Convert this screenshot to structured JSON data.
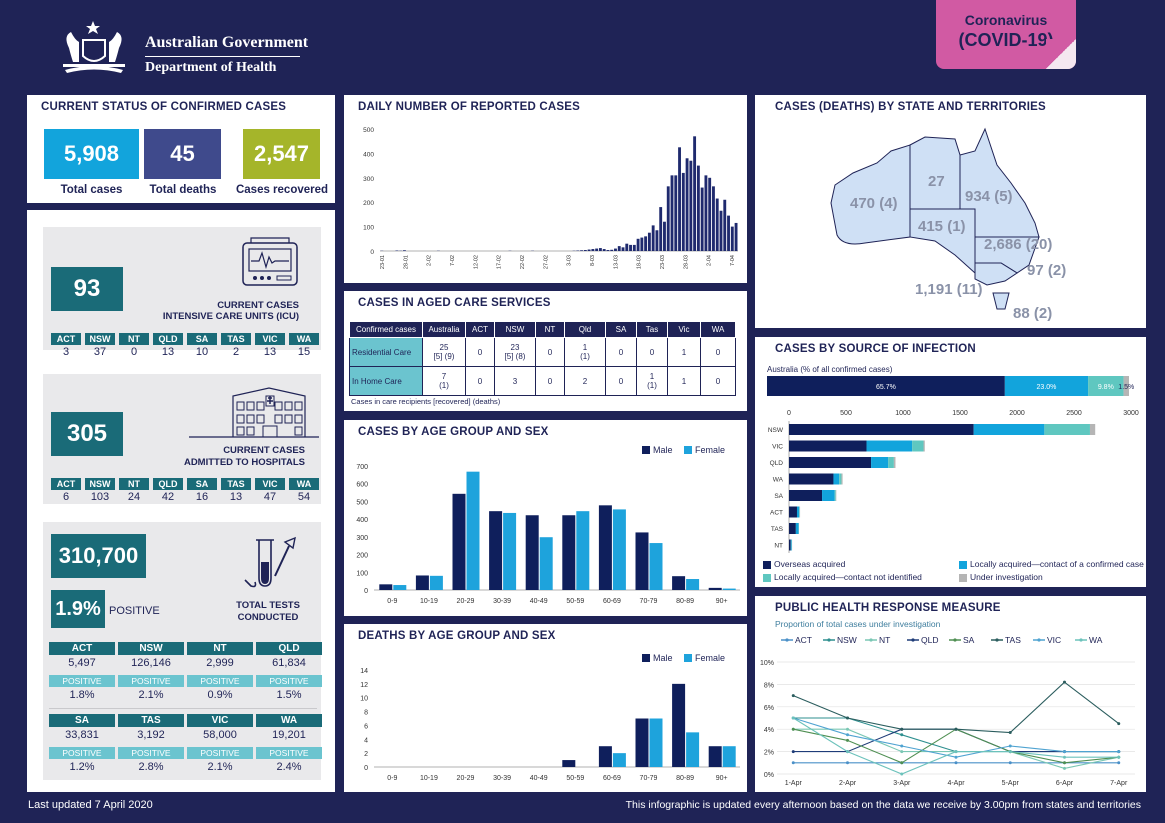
{
  "header": {
    "gov_name": "Australian Government",
    "dept_name": "Department of Health",
    "covid_line1": "Coronavirus",
    "covid_line2": "(COVID-19)"
  },
  "colors": {
    "navy": "#1f2356",
    "teal": "#1a6b78",
    "light_teal": "#6bc4cf",
    "blue": "#12a4dc",
    "slate": "#3f4a8c",
    "olive": "#a5b52a",
    "pink": "#d15aa3",
    "male": "#0f1f5c",
    "female": "#1ea3dc",
    "map_fill": "#cfe0f5"
  },
  "status": {
    "title": "CURRENT STATUS OF CONFIRMED CASES",
    "total_cases": "5,908",
    "total_cases_label": "Total cases",
    "total_deaths": "45",
    "total_deaths_label": "Total deaths",
    "recovered": "2,547",
    "recovered_label": "Cases recovered"
  },
  "icu": {
    "value": "93",
    "label1": "CURRENT CASES",
    "label2": "INTENSIVE CARE UNITS (ICU)",
    "states": [
      {
        "s": "ACT",
        "v": "3"
      },
      {
        "s": "NSW",
        "v": "37"
      },
      {
        "s": "NT",
        "v": "0"
      },
      {
        "s": "QLD",
        "v": "13"
      },
      {
        "s": "SA",
        "v": "10"
      },
      {
        "s": "TAS",
        "v": "2"
      },
      {
        "s": "VIC",
        "v": "13"
      },
      {
        "s": "WA",
        "v": "15"
      }
    ]
  },
  "hospital": {
    "value": "305",
    "label1": "CURRENT CASES",
    "label2": "ADMITTED TO HOSPITALS",
    "states": [
      {
        "s": "ACT",
        "v": "6"
      },
      {
        "s": "NSW",
        "v": "103"
      },
      {
        "s": "NT",
        "v": "24"
      },
      {
        "s": "QLD",
        "v": "42"
      },
      {
        "s": "SA",
        "v": "16"
      },
      {
        "s": "TAS",
        "v": "13"
      },
      {
        "s": "VIC",
        "v": "47"
      },
      {
        "s": "WA",
        "v": "54"
      }
    ]
  },
  "tests": {
    "value": "310,700",
    "positive_pct": "1.9%",
    "positive_label": "POSITIVE",
    "label1": "TOTAL TESTS",
    "label2": "CONDUCTED",
    "positive_word": "POSITIVE",
    "states": [
      {
        "s": "ACT",
        "v": "5,497",
        "p": "1.8%"
      },
      {
        "s": "NSW",
        "v": "126,146",
        "p": "2.1%"
      },
      {
        "s": "NT",
        "v": "2,999",
        "p": "0.9%"
      },
      {
        "s": "QLD",
        "v": "61,834",
        "p": "1.5%"
      },
      {
        "s": "SA",
        "v": "33,831",
        "p": "1.2%"
      },
      {
        "s": "TAS",
        "v": "3,192",
        "p": "2.8%"
      },
      {
        "s": "VIC",
        "v": "58,000",
        "p": "2.1%"
      },
      {
        "s": "WA",
        "v": "19,201",
        "p": "2.4%"
      }
    ]
  },
  "aged_care": {
    "title": "CASES IN AGED CARE SERVICES",
    "headers": [
      "Confirmed cases",
      "Australia",
      "ACT",
      "NSW",
      "NT",
      "Qld",
      "SA",
      "Tas",
      "Vic",
      "WA"
    ],
    "rows": [
      {
        "label": "Residential Care",
        "cells": [
          [
            "25",
            "[5] (9)"
          ],
          [
            "0",
            ""
          ],
          [
            "23",
            "[5] (8)"
          ],
          [
            "0",
            ""
          ],
          [
            "1",
            "(1)"
          ],
          [
            "0",
            ""
          ],
          [
            "0",
            ""
          ],
          [
            "1",
            ""
          ],
          [
            "0",
            ""
          ]
        ]
      },
      {
        "label": "In Home Care",
        "cells": [
          [
            "7",
            "(1)"
          ],
          [
            "0",
            ""
          ],
          [
            "3",
            ""
          ],
          [
            "0",
            ""
          ],
          [
            "2",
            ""
          ],
          [
            "0",
            ""
          ],
          [
            "1",
            "(1)"
          ],
          [
            "1",
            ""
          ],
          [
            "0",
            ""
          ]
        ]
      }
    ],
    "note": "Cases in care recipients [recovered] (deaths)"
  },
  "map": {
    "title": "CASES (DEATHS) BY STATE AND TERRITORIES",
    "labels": {
      "WA": "470 (4)",
      "NT": "27",
      "QLD": "934 (5)",
      "SA": "415 (1)",
      "NSW": "2,686 (20)",
      "ACT": "97 (2)",
      "VIC": "1,191 (11)",
      "TAS": "88 (2)"
    }
  },
  "footer": {
    "left": "Last updated 7 April 2020",
    "right": "This infographic is updated every afternoon based on the data we receive by 3.00pm from states and territories"
  },
  "chart_data": [
    {
      "id": "daily",
      "type": "bar",
      "title": "DAILY NUMBER OF REPORTED CASES",
      "ylim": [
        0,
        500
      ],
      "yticks": [
        0,
        100,
        200,
        300,
        400,
        500
      ],
      "tick_labels": [
        "23-01",
        "28-01",
        "2-02",
        "7-02",
        "12-02",
        "17-02",
        "22-02",
        "27-02",
        "3-03",
        "8-03",
        "13-03",
        "18-03",
        "23-03",
        "28-03",
        "2-04",
        "7-04"
      ],
      "values": [
        1,
        0,
        0,
        0,
        2,
        1,
        3,
        0,
        0,
        0,
        0,
        0,
        0,
        0,
        0,
        1,
        0,
        0,
        0,
        0,
        0,
        0,
        0,
        0,
        0,
        0,
        0,
        0,
        0,
        0,
        0,
        0,
        0,
        0,
        1,
        0,
        0,
        0,
        0,
        0,
        1,
        0,
        0,
        0,
        0,
        0,
        0,
        0,
        0,
        0,
        0,
        1,
        2,
        3,
        4,
        6,
        8,
        10,
        12,
        8,
        4,
        5,
        10,
        20,
        15,
        30,
        25,
        25,
        50,
        55,
        60,
        75,
        105,
        85,
        180,
        120,
        265,
        310,
        310,
        425,
        320,
        380,
        370,
        470,
        350,
        260,
        310,
        300,
        265,
        215,
        165,
        210,
        145,
        100,
        115
      ]
    },
    {
      "id": "aged_care",
      "type": "table",
      "title": "CASES IN AGED CARE SERVICES"
    },
    {
      "id": "source_total",
      "type": "bar",
      "title": "CASES BY SOURCE OF INFECTION",
      "subtitle": "Australia (% of all confirmed cases)",
      "segments": [
        {
          "name": "Overseas acquired",
          "value": 65.7,
          "label": "65.7%"
        },
        {
          "name": "Locally acquired—contact of a confirmed case",
          "value": 23.0,
          "label": "23.0%"
        },
        {
          "name": "Locally acquired—contact not identified",
          "value": 9.8,
          "label": "9.8%"
        },
        {
          "name": "Under investigation",
          "value": 1.5,
          "label": "1.5%"
        }
      ]
    },
    {
      "id": "source_state",
      "type": "bar",
      "xlim": [
        0,
        3000
      ],
      "xticks": [
        0,
        500,
        1000,
        1500,
        2000,
        2500,
        3000
      ],
      "categories": [
        "NSW",
        "VIC",
        "QLD",
        "WA",
        "SA",
        "ACT",
        "TAS",
        "NT"
      ],
      "series": [
        {
          "name": "Overseas acquired",
          "color": "#0f1f5c",
          "values": [
            1620,
            680,
            720,
            390,
            290,
            70,
            60,
            15
          ]
        },
        {
          "name": "Locally acquired—contact of a confirmed case",
          "color": "#12a4dc",
          "values": [
            620,
            400,
            150,
            50,
            110,
            20,
            25,
            8
          ]
        },
        {
          "name": "Locally acquired—contact not identified",
          "color": "#5fc7c0",
          "values": [
            400,
            100,
            50,
            20,
            10,
            4,
            2,
            2
          ]
        },
        {
          "name": "Under investigation",
          "color": "#b5b5b5",
          "values": [
            46,
            11,
            14,
            10,
            5,
            3,
            1,
            2
          ]
        }
      ],
      "legend": [
        "Overseas acquired",
        "Locally acquired—contact of a confirmed case",
        "Locally acquired—contact not identified",
        "Under investigation"
      ]
    },
    {
      "id": "age_cases",
      "type": "bar",
      "title": "CASES BY AGE GROUP AND SEX",
      "ylim": [
        0,
        700
      ],
      "yticks": [
        0,
        100,
        200,
        300,
        400,
        500,
        600,
        700
      ],
      "categories": [
        "0-9",
        "10-19",
        "20-29",
        "30-39",
        "40-49",
        "50-59",
        "60-69",
        "70-79",
        "80-89",
        "90+"
      ],
      "series": [
        {
          "name": "Male",
          "values": [
            32,
            82,
            543,
            445,
            422,
            422,
            478,
            325,
            78,
            12
          ]
        },
        {
          "name": "Female",
          "values": [
            28,
            80,
            668,
            435,
            298,
            445,
            455,
            265,
            62,
            8
          ]
        }
      ],
      "legend": [
        "Male",
        "Female"
      ]
    },
    {
      "id": "age_deaths",
      "type": "bar",
      "title": "DEATHS BY AGE GROUP AND SEX",
      "ylim": [
        0,
        14
      ],
      "yticks": [
        0,
        2,
        4,
        6,
        8,
        10,
        12,
        14
      ],
      "categories": [
        "0-9",
        "10-19",
        "20-29",
        "30-39",
        "40-49",
        "50-59",
        "60-69",
        "70-79",
        "80-89",
        "90+"
      ],
      "series": [
        {
          "name": "Male",
          "values": [
            0,
            0,
            0,
            0,
            0,
            1,
            3,
            7,
            12,
            3
          ]
        },
        {
          "name": "Female",
          "values": [
            0,
            0,
            0,
            0,
            0,
            0,
            2,
            7,
            5,
            3
          ]
        }
      ],
      "legend": [
        "Male",
        "Female"
      ]
    },
    {
      "id": "response",
      "type": "line",
      "title": "PUBLIC HEALTH RESPONSE MEASURE",
      "subtitle": "Proportion of total cases under investigation",
      "ylim": [
        0,
        10
      ],
      "yticks": [
        "0%",
        "2%",
        "4%",
        "6%",
        "8%",
        "10%"
      ],
      "x": [
        "1-Apr",
        "2-Apr",
        "3-Apr",
        "4-Apr",
        "5-Apr",
        "6-Apr",
        "7-Apr"
      ],
      "series": [
        {
          "name": "ACT",
          "color": "#4a90c8",
          "values": [
            1,
            1,
            1,
            1,
            1,
            1,
            1
          ]
        },
        {
          "name": "NSW",
          "color": "#2e8f8f",
          "values": [
            5,
            5,
            3.5,
            2,
            2,
            2,
            2
          ]
        },
        {
          "name": "NT",
          "color": "#7ac7b4",
          "values": [
            4,
            4,
            2,
            2,
            2,
            0.5,
            1.5
          ]
        },
        {
          "name": "QLD",
          "color": "#1f3c78",
          "values": [
            2,
            2,
            4,
            4,
            2,
            2,
            2
          ]
        },
        {
          "name": "SA",
          "color": "#4f8f52",
          "values": [
            4,
            3,
            1,
            4,
            2,
            1,
            1.5
          ]
        },
        {
          "name": "TAS",
          "color": "#2b5d5e",
          "values": [
            7,
            5,
            4,
            4,
            3.7,
            8.2,
            4.5
          ]
        },
        {
          "name": "VIC",
          "color": "#4fa3d1",
          "values": [
            5,
            3.5,
            2.5,
            1.5,
            2.5,
            2,
            2
          ]
        },
        {
          "name": "WA",
          "color": "#6cc2bb",
          "values": [
            5,
            2,
            0,
            2,
            2,
            1.5,
            1.5
          ]
        }
      ]
    }
  ]
}
